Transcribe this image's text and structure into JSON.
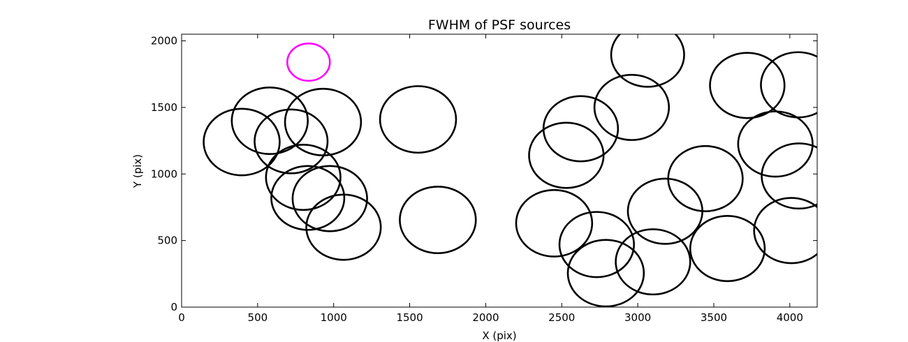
{
  "chart_data": {
    "type": "scatter",
    "title": "FWHM of PSF sources",
    "xlabel": "X (pix)",
    "ylabel": "Y (pix)",
    "xlim": [
      0,
      4180
    ],
    "ylim": [
      0,
      2050
    ],
    "xticks": [
      0,
      500,
      1000,
      1500,
      2000,
      2500,
      3000,
      3500,
      4000
    ],
    "yticks": [
      0,
      500,
      1000,
      1500,
      2000
    ],
    "grid": false,
    "marker": "circle-outline",
    "colors": {
      "default": "#000000",
      "highlight": "#ff00ff"
    },
    "series": [
      {
        "points": [
          {
            "x": 395,
            "y": 1240,
            "r": 250
          },
          {
            "x": 580,
            "y": 1400,
            "r": 250
          },
          {
            "x": 720,
            "y": 1245,
            "r": 240
          },
          {
            "x": 930,
            "y": 1390,
            "r": 250
          },
          {
            "x": 800,
            "y": 975,
            "r": 245
          },
          {
            "x": 830,
            "y": 820,
            "r": 240
          },
          {
            "x": 975,
            "y": 815,
            "r": 245
          },
          {
            "x": 1065,
            "y": 600,
            "r": 245
          },
          {
            "x": 1555,
            "y": 1410,
            "r": 250
          },
          {
            "x": 1685,
            "y": 655,
            "r": 250
          },
          {
            "x": 2450,
            "y": 630,
            "r": 250
          },
          {
            "x": 2530,
            "y": 1140,
            "r": 245
          },
          {
            "x": 2625,
            "y": 1340,
            "r": 245
          },
          {
            "x": 2730,
            "y": 470,
            "r": 245
          },
          {
            "x": 2790,
            "y": 255,
            "r": 250
          },
          {
            "x": 2960,
            "y": 1500,
            "r": 245
          },
          {
            "x": 3065,
            "y": 1895,
            "r": 240
          },
          {
            "x": 3100,
            "y": 340,
            "r": 245
          },
          {
            "x": 3180,
            "y": 720,
            "r": 245
          },
          {
            "x": 3445,
            "y": 965,
            "r": 245
          },
          {
            "x": 3590,
            "y": 440,
            "r": 245
          },
          {
            "x": 3720,
            "y": 1665,
            "r": 245
          },
          {
            "x": 3905,
            "y": 1225,
            "r": 245
          },
          {
            "x": 4010,
            "y": 575,
            "r": 245
          },
          {
            "x": 4055,
            "y": 1670,
            "r": 245
          },
          {
            "x": 4060,
            "y": 985,
            "r": 245
          }
        ]
      },
      {
        "highlight": true,
        "points": [
          {
            "x": 835,
            "y": 1840,
            "r": 140
          }
        ]
      }
    ]
  }
}
